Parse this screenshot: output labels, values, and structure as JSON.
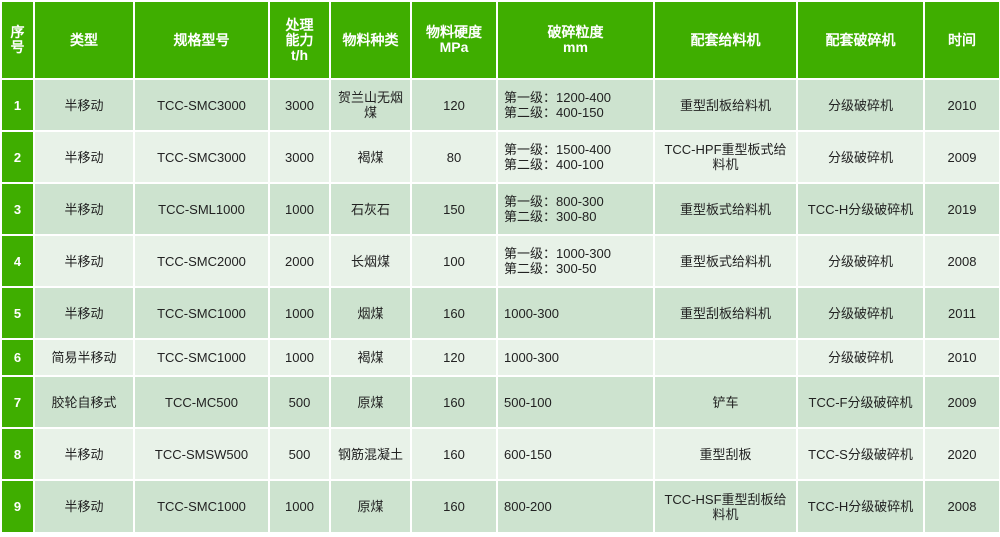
{
  "colors": {
    "header": "#3fae00",
    "row_odd": "#cde3cf",
    "row_even": "#e8f2e8"
  },
  "headers": [
    "序号",
    "类型",
    "规格型号",
    "处理能力t/h",
    "物料种类",
    "物料硬度MPa",
    "破碎粒度mm",
    "配套给料机",
    "配套破碎机",
    "时间"
  ],
  "header_lines": {
    "idx": [
      "序",
      "号"
    ],
    "capacity": [
      "处理",
      "能力",
      "t/h"
    ],
    "hardness": [
      "物料硬度",
      "MPa"
    ],
    "size": [
      "破碎粒度",
      "mm"
    ]
  },
  "rows": [
    {
      "idx": "1",
      "type": "半移动",
      "model": "TCC-SMC3000",
      "capacity": "3000",
      "material": "贺兰山无烟煤",
      "hardness": "120",
      "size": "第一级：1200-400\n第二级：400-150",
      "feeder": "重型刮板给料机",
      "crusher": "分级破碎机",
      "year": "2010"
    },
    {
      "idx": "2",
      "type": "半移动",
      "model": "TCC-SMC3000",
      "capacity": "3000",
      "material": "褐煤",
      "hardness": "80",
      "size": "第一级：1500-400\n第二级：400-100",
      "feeder": "TCC-HPF重型板式给料机",
      "crusher": "分级破碎机",
      "year": "2009"
    },
    {
      "idx": "3",
      "type": "半移动",
      "model": "TCC-SML1000",
      "capacity": "1000",
      "material": "石灰石",
      "hardness": "150",
      "size": "第一级：800-300\n第二级：300-80",
      "feeder": "重型板式给料机",
      "crusher": "TCC-H分级破碎机",
      "year": "2019"
    },
    {
      "idx": "4",
      "type": "半移动",
      "model": "TCC-SMC2000",
      "capacity": "2000",
      "material": "长烟煤",
      "hardness": "100",
      "size": "第一级：1000-300\n第二级：300-50",
      "feeder": "重型板式给料机",
      "crusher": "分级破碎机",
      "year": "2008"
    },
    {
      "idx": "5",
      "type": "半移动",
      "model": "TCC-SMC1000",
      "capacity": "1000",
      "material": "烟煤",
      "hardness": "160",
      "size": "1000-300",
      "feeder": "重型刮板给料机",
      "crusher": "分级破碎机",
      "year": "2011"
    },
    {
      "idx": "6",
      "type": "简易半移动",
      "model": "TCC-SMC1000",
      "capacity": "1000",
      "material": "褐煤",
      "hardness": "120",
      "size": "1000-300",
      "feeder": "",
      "crusher": "分级破碎机",
      "year": "2010"
    },
    {
      "idx": "7",
      "type": "胶轮自移式",
      "model": "TCC-MC500",
      "capacity": "500",
      "material": "原煤",
      "hardness": "160",
      "size": "500-100",
      "feeder": "铲车",
      "crusher": "TCC-F分级破碎机",
      "year": "2009"
    },
    {
      "idx": "8",
      "type": "半移动",
      "model": "TCC-SMSW500",
      "capacity": "500",
      "material": "钢筋混凝土",
      "hardness": "160",
      "size": "600-150",
      "feeder": "重型刮板",
      "crusher": "TCC-S分级破碎机",
      "year": "2020"
    },
    {
      "idx": "9",
      "type": "半移动",
      "model": "TCC-SMC1000",
      "capacity": "1000",
      "material": "原煤",
      "hardness": "160",
      "size": "800-200",
      "feeder": "TCC-HSF重型刮板给料机",
      "crusher": "TCC-H分级破碎机",
      "year": "2008"
    }
  ]
}
